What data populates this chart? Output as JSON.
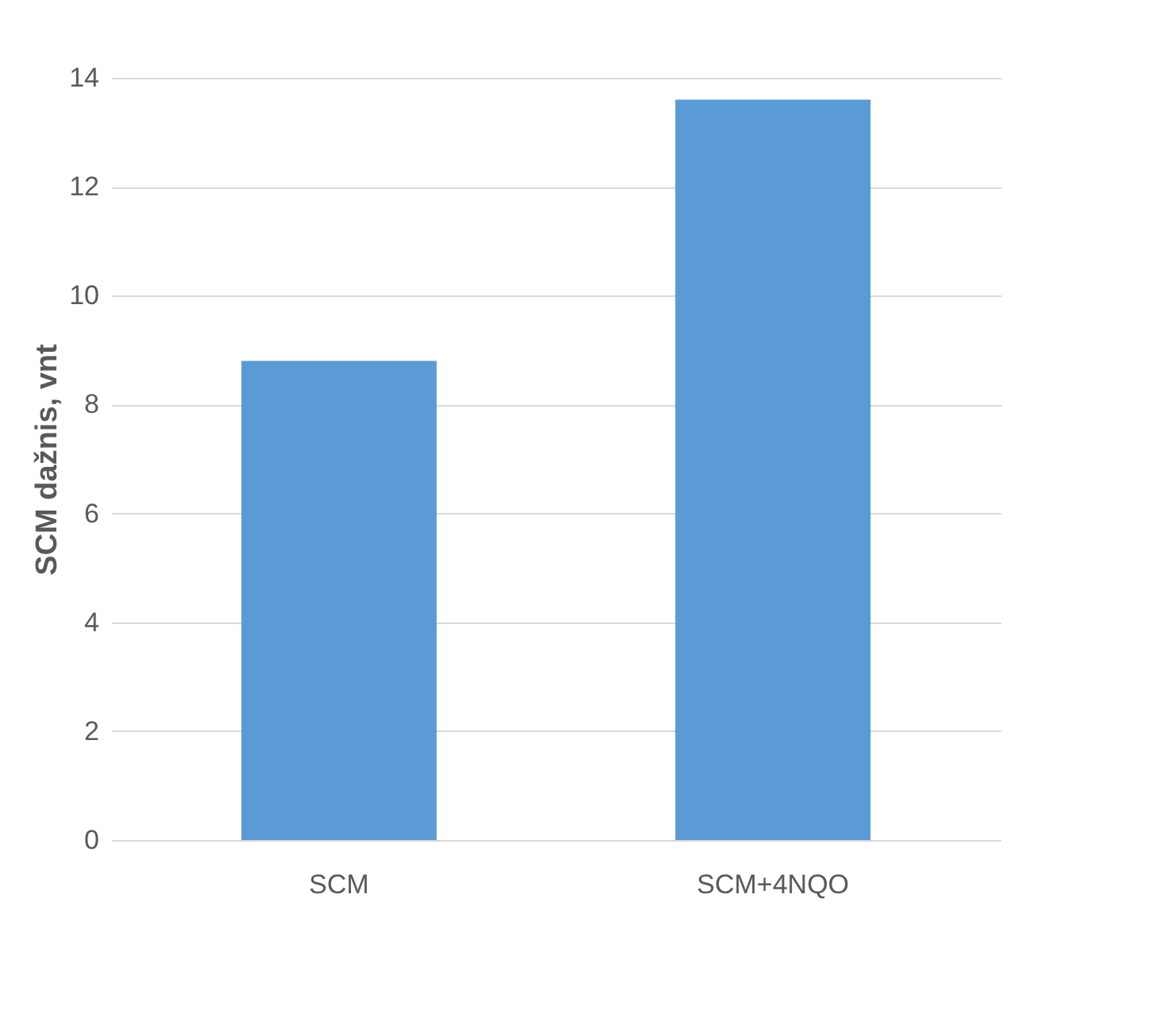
{
  "chart_data": {
    "type": "bar",
    "ylabel": "SCM dažnis, vnt",
    "categories": [
      "SCM",
      "SCM+4NQO"
    ],
    "values": [
      8.8,
      13.6
    ],
    "color": "#5b9bd5",
    "ylim": [
      0,
      14
    ],
    "yticks": [
      0,
      2,
      4,
      6,
      8,
      10,
      12,
      14
    ],
    "grid": "y"
  }
}
